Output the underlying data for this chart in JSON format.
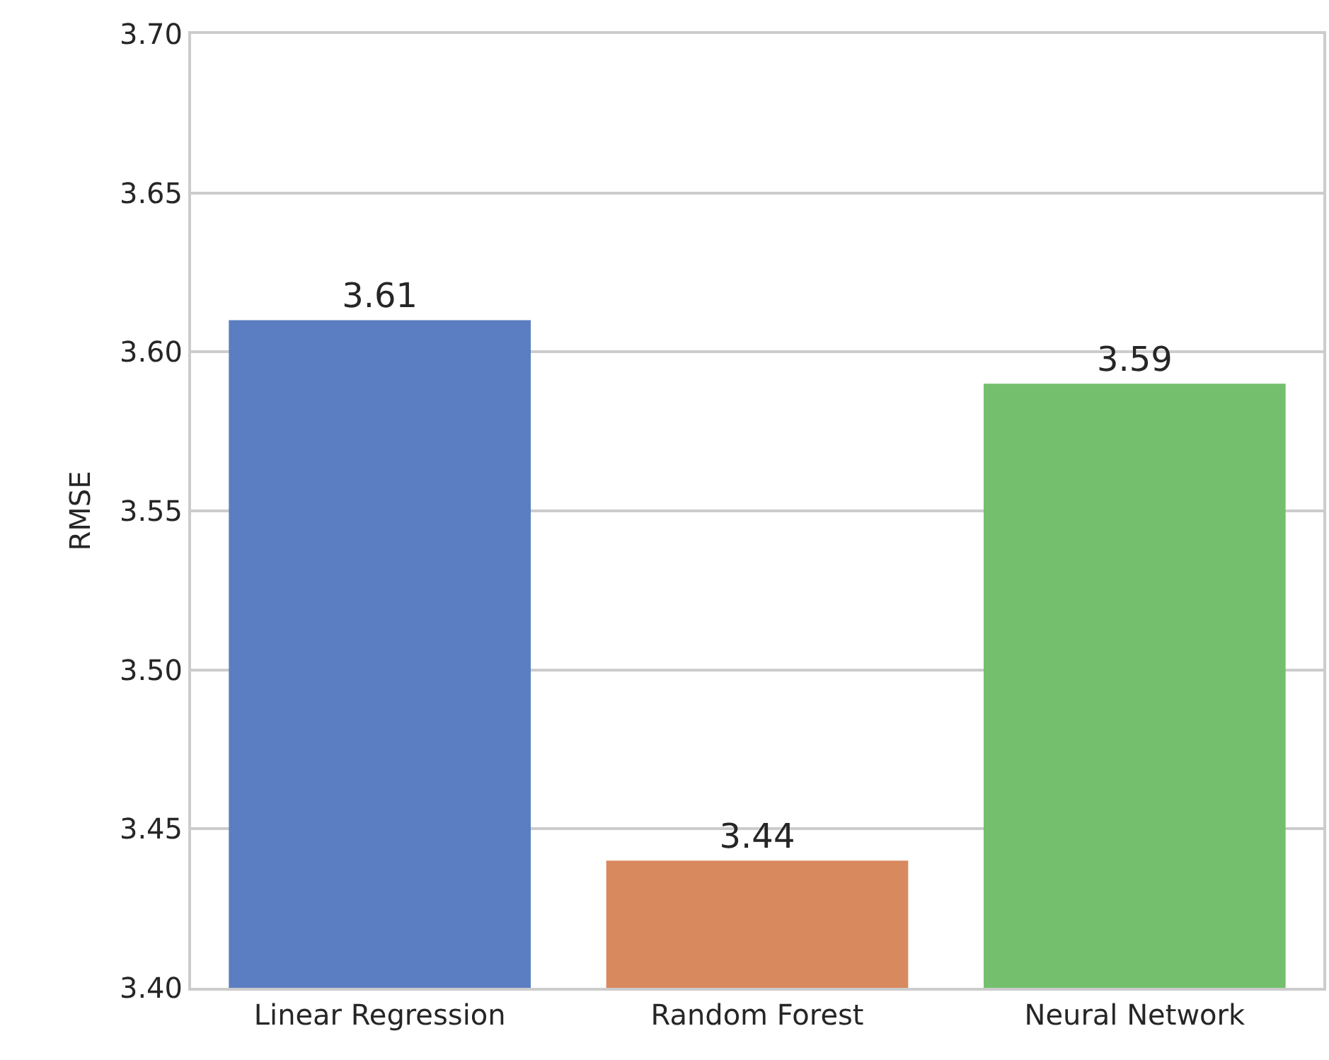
{
  "chart_data": {
    "type": "bar",
    "ylabel": "RMSE",
    "categories": [
      "Linear Regression",
      "Random Forest",
      "Neural Network"
    ],
    "values": [
      3.61,
      3.44,
      3.59
    ],
    "colors": [
      "#5b7dc1",
      "#d9895e",
      "#74bf6e"
    ],
    "ylim": [
      3.4,
      3.7
    ],
    "yticks": [
      {
        "value": 3.4,
        "label": "3.40"
      },
      {
        "value": 3.45,
        "label": "3.45"
      },
      {
        "value": 3.5,
        "label": "3.50"
      },
      {
        "value": 3.55,
        "label": "3.55"
      },
      {
        "value": 3.6,
        "label": "3.60"
      },
      {
        "value": 3.65,
        "label": "3.65"
      },
      {
        "value": 3.7,
        "label": "3.70"
      }
    ],
    "grid": "y",
    "data_labels": true
  }
}
